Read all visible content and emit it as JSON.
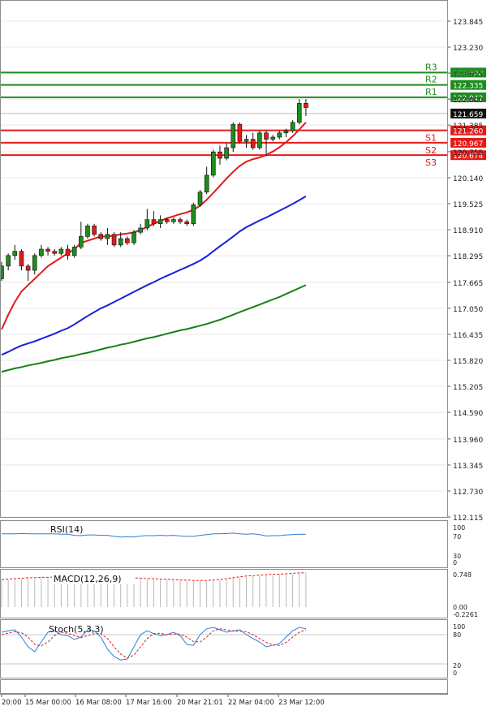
{
  "chart_data": {
    "type": "candlestick",
    "main": {
      "y_ticks": [
        "123.845",
        "123.230",
        "122.615",
        "122.000",
        "121.385",
        "120.755",
        "120.140",
        "119.525",
        "118.910",
        "118.295",
        "117.665",
        "117.050",
        "116.435",
        "115.820",
        "115.205",
        "114.590",
        "113.960",
        "113.345",
        "112.730",
        "112.115"
      ],
      "ylim": [
        112.115,
        124.15
      ],
      "current_price": "121.659",
      "levels": [
        {
          "name": "R3",
          "value": 122.628,
          "label": "122.628",
          "color": "#1e8c1e"
        },
        {
          "name": "R2",
          "value": 122.335,
          "label": "122.335",
          "color": "#1e8c1e"
        },
        {
          "name": "R1",
          "value": 122.042,
          "label": "122.042",
          "color": "#1e8c1e"
        },
        {
          "name": "S1",
          "value": 121.26,
          "label": "121.260",
          "color": "#e41a1a"
        },
        {
          "name": "S2",
          "value": 120.967,
          "label": "120.967",
          "color": "#e41a1a"
        },
        {
          "name": "S3",
          "value": 120.674,
          "label": "120.674",
          "color": "#e41a1a"
        }
      ],
      "candles": [
        [
          117.75,
          118.05,
          117.7,
          118.15
        ],
        [
          118.05,
          118.3,
          117.95,
          118.35
        ],
        [
          118.3,
          118.4,
          118.2,
          118.55
        ],
        [
          118.4,
          118.05,
          117.95,
          118.45
        ],
        [
          118.05,
          117.95,
          117.7,
          118.1
        ],
        [
          117.95,
          118.3,
          117.85,
          118.35
        ],
        [
          118.3,
          118.45,
          118.25,
          118.55
        ],
        [
          118.45,
          118.4,
          118.3,
          118.5
        ],
        [
          118.4,
          118.35,
          118.3,
          118.45
        ],
        [
          118.35,
          118.45,
          118.3,
          118.5
        ],
        [
          118.45,
          118.3,
          118.2,
          118.55
        ],
        [
          118.3,
          118.5,
          118.25,
          118.55
        ],
        [
          118.5,
          118.75,
          118.45,
          119.1
        ],
        [
          118.75,
          119.0,
          118.7,
          119.05
        ],
        [
          119.0,
          118.8,
          118.75,
          119.05
        ],
        [
          118.8,
          118.7,
          118.65,
          118.85
        ],
        [
          118.7,
          118.8,
          118.55,
          118.95
        ],
        [
          118.8,
          118.55,
          118.5,
          118.85
        ],
        [
          118.55,
          118.7,
          118.5,
          118.85
        ],
        [
          118.7,
          118.6,
          118.55,
          118.75
        ],
        [
          118.6,
          118.85,
          118.55,
          118.9
        ],
        [
          118.85,
          118.95,
          118.8,
          119.05
        ],
        [
          118.95,
          119.15,
          118.9,
          119.4
        ],
        [
          119.15,
          119.05,
          119.0,
          119.35
        ],
        [
          119.05,
          119.15,
          118.95,
          119.25
        ],
        [
          119.15,
          119.1,
          119.05,
          119.2
        ],
        [
          119.1,
          119.15,
          119.05,
          119.2
        ],
        [
          119.15,
          119.1,
          119.05,
          119.2
        ],
        [
          119.1,
          119.05,
          119.0,
          119.15
        ],
        [
          119.05,
          119.5,
          119.0,
          119.55
        ],
        [
          119.5,
          119.8,
          119.45,
          119.85
        ],
        [
          119.8,
          120.2,
          119.75,
          120.4
        ],
        [
          120.2,
          120.75,
          120.15,
          120.8
        ],
        [
          120.75,
          120.6,
          120.45,
          120.9
        ],
        [
          120.6,
          120.85,
          120.55,
          120.95
        ],
        [
          120.85,
          121.4,
          120.75,
          121.45
        ],
        [
          121.4,
          121.0,
          120.95,
          121.45
        ],
        [
          121.0,
          121.05,
          120.85,
          121.15
        ],
        [
          121.05,
          120.85,
          120.8,
          121.2
        ],
        [
          120.85,
          121.2,
          120.8,
          121.25
        ],
        [
          121.2,
          121.05,
          120.65,
          121.25
        ],
        [
          121.05,
          121.1,
          121.0,
          121.15
        ],
        [
          121.1,
          121.2,
          121.05,
          121.25
        ],
        [
          121.2,
          121.25,
          121.1,
          121.3
        ],
        [
          121.25,
          121.45,
          121.2,
          121.5
        ],
        [
          121.45,
          121.9,
          121.4,
          122.0
        ],
        [
          121.9,
          121.8,
          121.6,
          122.0
        ]
      ],
      "ma": [
        {
          "name": "fast",
          "color": "#e41a1a",
          "values": [
            116.55,
            116.9,
            117.2,
            117.45,
            117.6,
            117.75,
            117.9,
            118.05,
            118.15,
            118.25,
            118.35,
            118.45,
            118.6,
            118.65,
            118.7,
            118.75,
            118.75,
            118.77,
            118.8,
            118.82,
            118.85,
            118.9,
            118.98,
            119.05,
            119.12,
            119.18,
            119.23,
            119.28,
            119.32,
            119.38,
            119.48,
            119.62,
            119.78,
            119.95,
            120.12,
            120.28,
            120.42,
            120.52,
            120.58,
            120.62,
            120.68,
            120.76,
            120.86,
            120.98,
            121.12,
            121.28,
            121.45
          ]
        },
        {
          "name": "mid",
          "color": "#1a20d8",
          "values": [
            115.95,
            116.02,
            116.1,
            116.17,
            116.22,
            116.27,
            116.33,
            116.39,
            116.45,
            116.52,
            116.58,
            116.67,
            116.77,
            116.87,
            116.96,
            117.05,
            117.12,
            117.2,
            117.28,
            117.36,
            117.44,
            117.52,
            117.6,
            117.67,
            117.75,
            117.82,
            117.89,
            117.96,
            118.03,
            118.1,
            118.18,
            118.28,
            118.4,
            118.52,
            118.63,
            118.75,
            118.87,
            118.97,
            119.05,
            119.13,
            119.2,
            119.28,
            119.36,
            119.44,
            119.52,
            119.61,
            119.7
          ]
        },
        {
          "name": "slow",
          "color": "#148214",
          "values": [
            115.55,
            115.59,
            115.63,
            115.66,
            115.7,
            115.73,
            115.76,
            115.8,
            115.83,
            115.87,
            115.9,
            115.93,
            115.97,
            116.0,
            116.04,
            116.08,
            116.12,
            116.15,
            116.19,
            116.22,
            116.26,
            116.3,
            116.34,
            116.37,
            116.41,
            116.45,
            116.49,
            116.53,
            116.56,
            116.6,
            116.64,
            116.68,
            116.73,
            116.78,
            116.84,
            116.9,
            116.96,
            117.02,
            117.08,
            117.14,
            117.2,
            117.26,
            117.32,
            117.39,
            117.46,
            117.53,
            117.6
          ]
        }
      ]
    },
    "rsi": {
      "label": "RSI(14)",
      "y_ticks": [
        "100",
        "70",
        "30",
        "0"
      ],
      "ylim": [
        0,
        100
      ],
      "values": [
        80,
        80,
        80,
        81,
        80,
        80,
        80,
        80,
        80,
        79,
        79,
        76,
        75,
        77,
        77,
        76,
        76,
        73,
        71,
        72,
        71,
        74,
        75,
        75,
        76,
        75,
        76,
        74,
        73,
        73,
        76,
        78,
        80,
        80,
        81,
        82,
        80,
        79,
        80,
        78,
        74,
        75,
        75,
        77,
        78,
        79,
        79
      ]
    },
    "macd": {
      "label": "MACD(12,26,9)",
      "y_ticks": [
        "0.748",
        "0.00",
        "-0.2261"
      ],
      "ylim": [
        -0.2261,
        0.87
      ],
      "histogram": [
        0.6,
        0.61,
        0.62,
        0.63,
        0.64,
        0.64,
        0.65,
        0.65,
        0.66,
        0.66,
        0.66,
        0.66,
        0.67,
        0.67,
        0.67,
        0.67,
        0.66,
        0.66,
        0.65,
        0.65,
        0.64,
        0.63,
        0.62,
        0.62,
        0.61,
        0.61,
        0.6,
        0.59,
        0.59,
        0.58,
        0.58,
        0.58,
        0.59,
        0.6,
        0.62,
        0.64,
        0.66,
        0.68,
        0.69,
        0.7,
        0.71,
        0.72,
        0.72,
        0.73,
        0.74,
        0.75,
        0.75
      ],
      "signal": [
        0.6,
        0.61,
        0.62,
        0.63,
        0.64,
        0.64,
        0.65,
        0.65,
        0.66,
        0.66,
        0.66,
        0.66,
        0.67,
        0.67,
        0.67,
        0.67,
        0.66,
        0.66,
        0.65,
        0.65,
        0.64,
        0.63,
        0.62,
        0.62,
        0.61,
        0.61,
        0.6,
        0.59,
        0.59,
        0.58,
        0.58,
        0.58,
        0.59,
        0.6,
        0.62,
        0.64,
        0.66,
        0.68,
        0.69,
        0.7,
        0.71,
        0.72,
        0.72,
        0.73,
        0.74,
        0.75,
        0.75
      ]
    },
    "stoch": {
      "label": "Stoch(5,3,3)",
      "y_ticks": [
        "100",
        "80",
        "20",
        "0"
      ],
      "ylim": [
        0,
        100
      ],
      "k": [
        85,
        88,
        90,
        75,
        55,
        45,
        65,
        85,
        88,
        80,
        78,
        70,
        75,
        90,
        88,
        75,
        50,
        35,
        28,
        30,
        55,
        80,
        88,
        82,
        78,
        80,
        85,
        78,
        60,
        58,
        80,
        92,
        95,
        90,
        85,
        88,
        90,
        80,
        72,
        65,
        55,
        58,
        62,
        75,
        88,
        95,
        92
      ],
      "d": [
        80,
        83,
        86,
        84,
        75,
        60,
        57,
        65,
        78,
        85,
        83,
        78,
        74,
        78,
        82,
        82,
        72,
        55,
        40,
        32,
        38,
        55,
        72,
        82,
        83,
        80,
        81,
        81,
        75,
        66,
        65,
        75,
        88,
        92,
        90,
        87,
        87,
        86,
        80,
        72,
        64,
        59,
        58,
        64,
        75,
        85,
        90
      ]
    },
    "x_ticks": [
      "20:00",
      "15 Mar 00:00",
      "16 Mar 08:00",
      "17 Mar 16:00",
      "20 Mar 21:01",
      "22 Mar 04:00",
      "23 Mar 12:00"
    ],
    "colors": {
      "bull": "#1e8c1e",
      "bear": "#e41a1a",
      "grid": "#e8e8e8"
    }
  }
}
